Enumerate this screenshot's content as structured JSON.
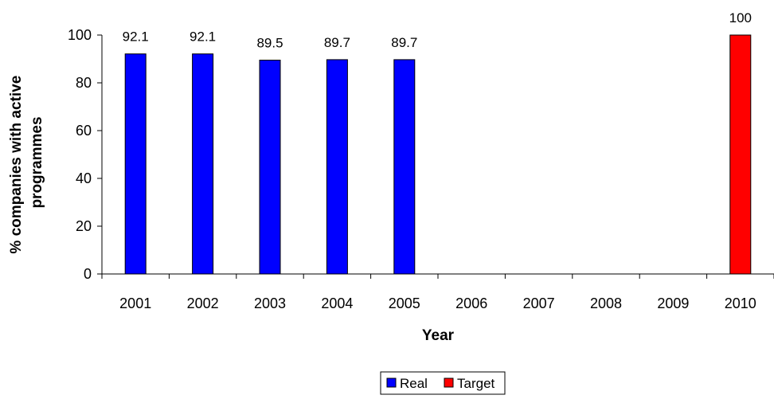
{
  "chart_data": {
    "type": "bar",
    "categories": [
      "2001",
      "2002",
      "2003",
      "2004",
      "2005",
      "2006",
      "2007",
      "2008",
      "2009",
      "2010"
    ],
    "series": [
      {
        "name": "Real",
        "color": "#0000ff",
        "values": [
          92.1,
          92.1,
          89.5,
          89.7,
          89.7,
          null,
          null,
          null,
          null,
          null
        ]
      },
      {
        "name": "Target",
        "color": "#ff0000",
        "values": [
          null,
          null,
          null,
          null,
          null,
          null,
          null,
          null,
          null,
          100
        ]
      }
    ],
    "data_labels": [
      "92.1",
      "92.1",
      "89.5",
      "89.7",
      "89.7",
      "",
      "",
      "",
      "",
      "100"
    ],
    "xlabel": "Year",
    "ylabel_lines": [
      "% companies with active",
      "programmes"
    ],
    "ylim": [
      0,
      100
    ],
    "yticks": [
      "0",
      "20",
      "40",
      "60",
      "80",
      "100"
    ],
    "grid": false,
    "legend_position": "bottom"
  }
}
